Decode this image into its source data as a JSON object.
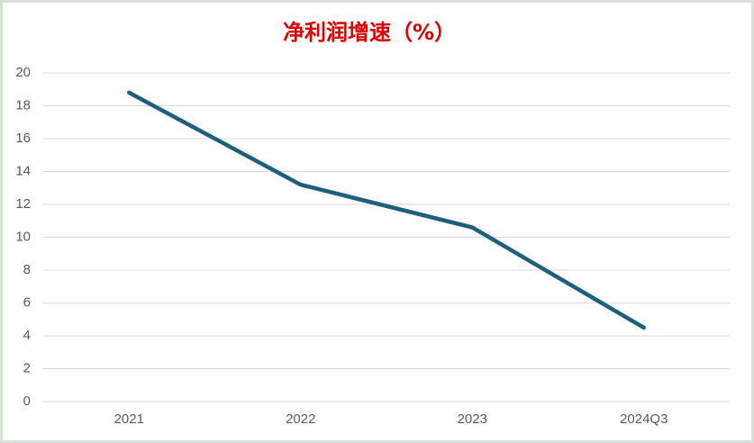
{
  "chart_data": {
    "type": "line",
    "title": "净利润增速（%）",
    "categories": [
      "2021",
      "2022",
      "2023",
      "2024Q3"
    ],
    "values": [
      18.8,
      13.2,
      10.6,
      4.5
    ],
    "color": "#1e5f7e",
    "ylim": [
      0,
      20
    ],
    "yticks": [
      0,
      2,
      4,
      6,
      8,
      10,
      12,
      14,
      16,
      18,
      20
    ],
    "grid": true
  }
}
